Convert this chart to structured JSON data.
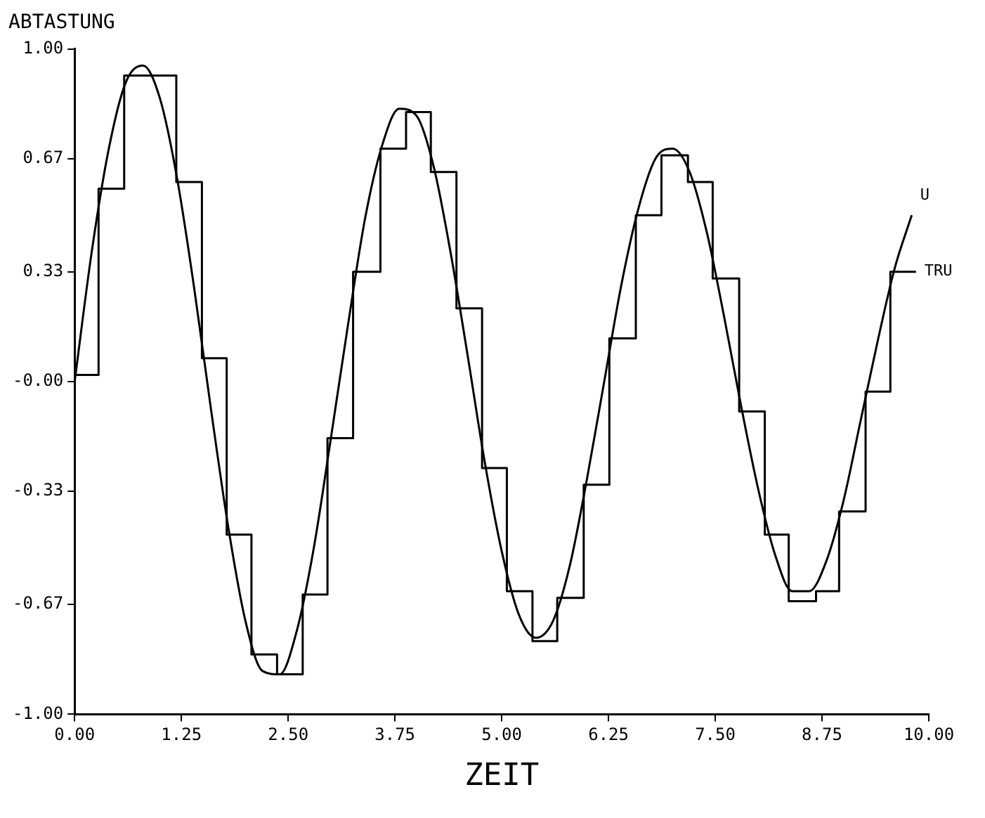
{
  "chart_data": {
    "type": "line",
    "title": "ABTASTUNG",
    "xlabel": "ZEIT",
    "xlim": [
      0,
      10
    ],
    "ylim": [
      -1,
      1
    ],
    "xticks": [
      {
        "value": 0,
        "label": "0.00"
      },
      {
        "value": 1.25,
        "label": "1.25"
      },
      {
        "value": 2.5,
        "label": "2.50"
      },
      {
        "value": 3.75,
        "label": "3.75"
      },
      {
        "value": 5,
        "label": "5.00"
      },
      {
        "value": 6.25,
        "label": "6.25"
      },
      {
        "value": 7.5,
        "label": "7.50"
      },
      {
        "value": 8.75,
        "label": "8.75"
      },
      {
        "value": 10,
        "label": "10.00"
      }
    ],
    "yticks": [
      {
        "value": -1,
        "label": "-1.00"
      },
      {
        "value": -0.67,
        "label": "-0.67"
      },
      {
        "value": -0.33,
        "label": "-0.33"
      },
      {
        "value": 0,
        "label": "-0.00"
      },
      {
        "value": 0.33,
        "label": "0.33"
      },
      {
        "value": 0.67,
        "label": "0.67"
      },
      {
        "value": 1,
        "label": "1.00"
      }
    ],
    "grid": false,
    "legend": false,
    "marker": "none",
    "line_style": "solid",
    "series": [
      {
        "name": "U",
        "type": "line",
        "color": "#000000",
        "x": [
          0,
          0.2,
          0.4,
          0.6,
          0.8,
          1.0,
          1.2,
          1.4,
          1.6,
          1.8,
          2.0,
          2.2,
          2.4,
          2.6,
          2.8,
          3.0,
          3.2,
          3.4,
          3.6,
          3.8,
          4.0,
          4.2,
          4.4,
          4.6,
          4.8,
          5.0,
          5.2,
          5.4,
          5.6,
          5.8,
          6.0,
          6.2,
          6.4,
          6.6,
          6.8,
          7.0,
          7.2,
          7.4,
          7.6,
          7.8,
          8.0,
          8.2,
          8.4,
          8.6,
          8.8,
          9.0,
          9.2,
          9.4,
          9.6,
          9.8
        ],
        "values": [
          0,
          0.39,
          0.7,
          0.9,
          0.95,
          0.85,
          0.61,
          0.28,
          -0.09,
          -0.44,
          -0.72,
          -0.87,
          -0.88,
          -0.75,
          -0.5,
          -0.17,
          0.17,
          0.49,
          0.71,
          0.82,
          0.8,
          0.65,
          0.39,
          0.08,
          -0.24,
          -0.51,
          -0.7,
          -0.77,
          -0.72,
          -0.55,
          -0.29,
          0,
          0.29,
          0.52,
          0.67,
          0.7,
          0.63,
          0.45,
          0.2,
          -0.07,
          -0.32,
          -0.52,
          -0.63,
          -0.63,
          -0.54,
          -0.36,
          -0.12,
          0.12,
          0.34,
          0.5
        ]
      },
      {
        "name": "TRU",
        "type": "step",
        "color": "#000000",
        "x": [
          0,
          0.28,
          0.58,
          0.88,
          1.19,
          1.49,
          1.78,
          2.07,
          2.37,
          2.67,
          2.96,
          3.26,
          3.58,
          3.88,
          4.17,
          4.47,
          4.77,
          5.06,
          5.36,
          5.65,
          5.96,
          6.26,
          6.57,
          6.87,
          7.18,
          7.47,
          7.78,
          8.08,
          8.36,
          8.68,
          8.95,
          9.26,
          9.55,
          9.85
        ],
        "values": [
          0.02,
          0.58,
          0.92,
          0.92,
          0.6,
          0.07,
          -0.46,
          -0.82,
          -0.88,
          -0.64,
          -0.17,
          0.33,
          0.7,
          0.81,
          0.63,
          0.22,
          -0.26,
          -0.63,
          -0.78,
          -0.65,
          -0.31,
          0.13,
          0.5,
          0.68,
          0.6,
          0.31,
          -0.09,
          -0.46,
          -0.66,
          -0.63,
          -0.39,
          -0.03,
          0.33,
          0.33
        ]
      }
    ]
  }
}
